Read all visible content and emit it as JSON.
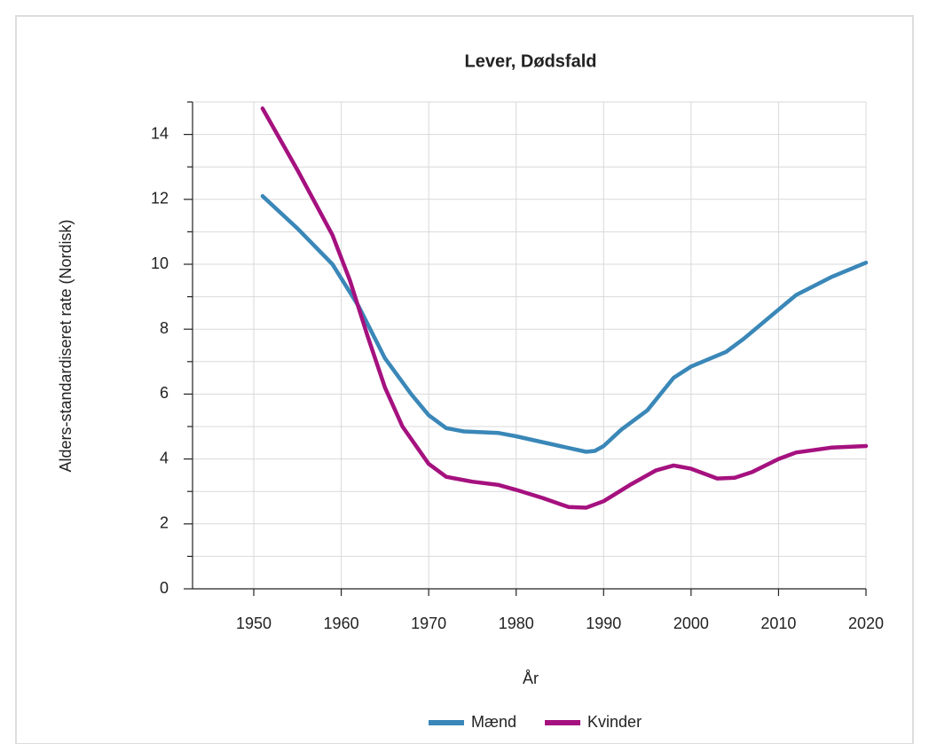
{
  "chart_data": {
    "type": "line",
    "title": "Lever, Dødsfald",
    "xlabel": "År",
    "ylabel": "Alders-standardiseret rate (Nordisk)",
    "xlim": [
      1943,
      2020
    ],
    "xticks": [
      1950,
      1960,
      1970,
      1980,
      1990,
      2000,
      2010,
      2020
    ],
    "ylim": [
      0,
      15
    ],
    "yticks": [
      0,
      2,
      4,
      6,
      8,
      10,
      12,
      14
    ],
    "yminor_ticks": [
      1,
      3,
      5,
      7,
      9,
      11,
      13,
      15
    ],
    "grid": true,
    "legend": "bottom",
    "series": [
      {
        "name": "Mænd",
        "color": "#3a87b8",
        "x": [
          1951,
          1955,
          1959,
          1962,
          1965,
          1968,
          1970,
          1972,
          1974,
          1978,
          1980,
          1985,
          1988,
          1989,
          1990,
          1992,
          1995,
          1998,
          2000,
          2004,
          2006,
          2010,
          2012,
          2016,
          2020
        ],
        "values": [
          12.1,
          11.1,
          10.0,
          8.7,
          7.1,
          6.0,
          5.35,
          4.95,
          4.85,
          4.8,
          4.7,
          4.4,
          4.22,
          4.25,
          4.4,
          4.9,
          5.5,
          6.5,
          6.85,
          7.3,
          7.7,
          8.6,
          9.05,
          9.6,
          10.05
        ]
      },
      {
        "name": "Kvinder",
        "color": "#a5117f",
        "x": [
          1951,
          1955,
          1959,
          1961,
          1963,
          1965,
          1967,
          1970,
          1972,
          1975,
          1978,
          1980,
          1983,
          1986,
          1988,
          1990,
          1993,
          1996,
          1998,
          2000,
          2003,
          2005,
          2007,
          2010,
          2012,
          2016,
          2020
        ],
        "values": [
          14.8,
          12.9,
          10.9,
          9.5,
          7.8,
          6.2,
          5.0,
          3.85,
          3.45,
          3.3,
          3.2,
          3.05,
          2.8,
          2.52,
          2.5,
          2.7,
          3.2,
          3.65,
          3.8,
          3.7,
          3.4,
          3.42,
          3.6,
          4.0,
          4.2,
          4.35,
          4.4
        ]
      }
    ]
  }
}
